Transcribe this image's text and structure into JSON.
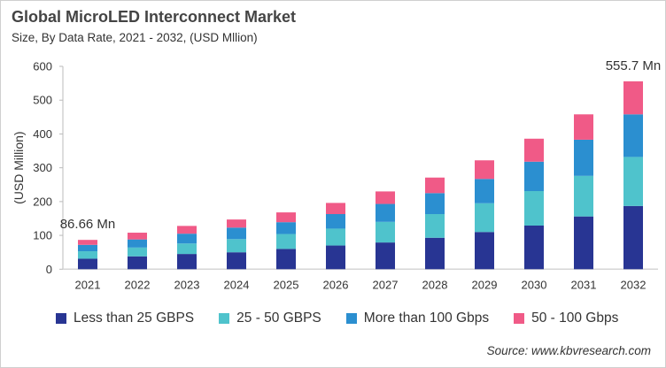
{
  "chart_data": {
    "type": "bar",
    "stacked": true,
    "title": "Global MicroLED Interconnect Market",
    "subtitle": "Size, By Data Rate, 2021 - 2032, (USD Mllion)",
    "xlabel": "",
    "ylabel": "(USD Million)",
    "ylim": [
      0,
      600
    ],
    "yticks": [
      0,
      100,
      200,
      300,
      400,
      500,
      600
    ],
    "grid": false,
    "legend_position": "bottom",
    "categories": [
      "2021",
      "2022",
      "2023",
      "2024",
      "2025",
      "2026",
      "2027",
      "2028",
      "2029",
      "2030",
      "2031",
      "2032"
    ],
    "series": [
      {
        "name": "Less than 25 GBPS",
        "color": "#283593",
        "values": [
          31,
          38,
          45,
          50,
          60,
          70,
          79,
          93,
          110,
          129,
          156,
          187
        ]
      },
      {
        "name": "25 - 50 GBPS",
        "color": "#4fc3cc",
        "values": [
          22,
          26,
          31,
          39,
          44,
          50,
          61,
          70,
          85,
          102,
          120,
          145
        ]
      },
      {
        "name": "More than 100 Gbps",
        "color": "#2b8fd0",
        "values": [
          19,
          24,
          29,
          34,
          35,
          43,
          53,
          62,
          72,
          87,
          107,
          126
        ]
      },
      {
        "name": "50 - 100 Gbps",
        "color": "#f05a87",
        "values": [
          14.66,
          20,
          23,
          24,
          29,
          33,
          37,
          46,
          55,
          68,
          75,
          97.7
        ]
      }
    ],
    "annotations": [
      {
        "category": "2021",
        "text": "86.66 Mn"
      },
      {
        "category": "2032",
        "text": "555.7 Mn"
      }
    ]
  },
  "source": "Source: www.kbvresearch.com"
}
